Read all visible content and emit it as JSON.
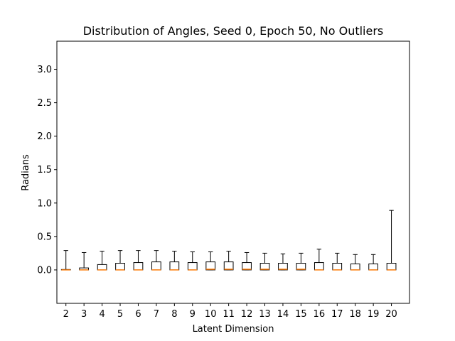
{
  "chart_data": {
    "type": "box",
    "title": "Distribution of Angles, Seed 0, Epoch 50, No Outliers",
    "xlabel": "Latent Dimension",
    "ylabel": "Radians",
    "ylim": [
      -0.5,
      3.42
    ],
    "yticks": [
      0.0,
      0.5,
      1.0,
      1.5,
      2.0,
      2.5,
      3.0
    ],
    "ytick_labels": [
      "0.0",
      "0.5",
      "1.0",
      "1.5",
      "2.0",
      "2.5",
      "3.0"
    ],
    "categories": [
      "2",
      "3",
      "4",
      "5",
      "6",
      "7",
      "8",
      "9",
      "10",
      "11",
      "12",
      "13",
      "14",
      "15",
      "16",
      "17",
      "18",
      "19",
      "20"
    ],
    "boxes": [
      {
        "label": "2",
        "whislo": 0.0,
        "q1": 0.0,
        "med": 0.0,
        "q3": 0.005,
        "whishi": 0.29
      },
      {
        "label": "3",
        "whislo": 0.0,
        "q1": 0.0,
        "med": 0.0,
        "q3": 0.03,
        "whishi": 0.26
      },
      {
        "label": "4",
        "whislo": 0.0,
        "q1": 0.0,
        "med": 0.0,
        "q3": 0.08,
        "whishi": 0.28
      },
      {
        "label": "5",
        "whislo": 0.0,
        "q1": 0.0,
        "med": 0.0,
        "q3": 0.1,
        "whishi": 0.29
      },
      {
        "label": "6",
        "whislo": 0.0,
        "q1": 0.0,
        "med": 0.0,
        "q3": 0.11,
        "whishi": 0.29
      },
      {
        "label": "7",
        "whislo": 0.0,
        "q1": 0.0,
        "med": 0.0,
        "q3": 0.12,
        "whishi": 0.29
      },
      {
        "label": "8",
        "whislo": 0.0,
        "q1": 0.0,
        "med": 0.0,
        "q3": 0.12,
        "whishi": 0.28
      },
      {
        "label": "9",
        "whislo": 0.0,
        "q1": 0.0,
        "med": 0.0,
        "q3": 0.11,
        "whishi": 0.27
      },
      {
        "label": "10",
        "whislo": 0.0,
        "q1": 0.0,
        "med": 0.01,
        "q3": 0.12,
        "whishi": 0.27
      },
      {
        "label": "11",
        "whislo": 0.0,
        "q1": 0.0,
        "med": 0.01,
        "q3": 0.12,
        "whishi": 0.28
      },
      {
        "label": "12",
        "whislo": 0.0,
        "q1": 0.0,
        "med": 0.01,
        "q3": 0.11,
        "whishi": 0.26
      },
      {
        "label": "13",
        "whislo": 0.0,
        "q1": 0.0,
        "med": 0.01,
        "q3": 0.1,
        "whishi": 0.25
      },
      {
        "label": "14",
        "whislo": 0.0,
        "q1": 0.0,
        "med": 0.01,
        "q3": 0.1,
        "whishi": 0.24
      },
      {
        "label": "15",
        "whislo": 0.0,
        "q1": 0.0,
        "med": 0.01,
        "q3": 0.1,
        "whishi": 0.25
      },
      {
        "label": "16",
        "whislo": 0.0,
        "q1": 0.0,
        "med": 0.0,
        "q3": 0.11,
        "whishi": 0.31
      },
      {
        "label": "17",
        "whislo": 0.0,
        "q1": 0.0,
        "med": 0.0,
        "q3": 0.1,
        "whishi": 0.25
      },
      {
        "label": "18",
        "whislo": 0.0,
        "q1": 0.0,
        "med": 0.0,
        "q3": 0.09,
        "whishi": 0.23
      },
      {
        "label": "19",
        "whislo": 0.0,
        "q1": 0.0,
        "med": 0.0,
        "q3": 0.09,
        "whishi": 0.23
      },
      {
        "label": "20",
        "whislo": 0.0,
        "q1": 0.0,
        "med": 0.0,
        "q3": 0.1,
        "whishi": 0.89
      }
    ],
    "grid": false,
    "box_color": "#000000",
    "median_color": "#ff7f0e"
  }
}
